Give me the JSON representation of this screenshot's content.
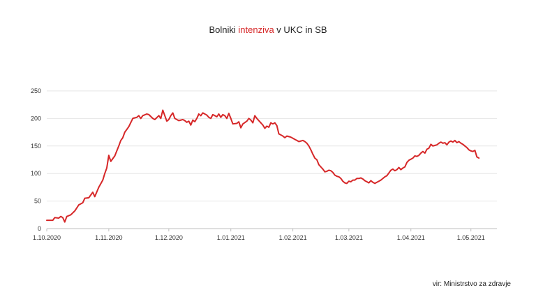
{
  "title": {
    "part1": "Bolniki ",
    "part2": "intenziva",
    "part3": " v UKC in SB"
  },
  "source": "vir: Ministrstvo za zdravje",
  "colors": {
    "line": "#d62728",
    "grid": "#e6e6e6",
    "axis": "#bfbfbf",
    "title_accent": "#d62728"
  },
  "chart_data": {
    "type": "line",
    "title": "Bolniki intenziva v UKC in SB",
    "xlabel": "",
    "ylabel": "",
    "x_unit": "day_index_from_2020-10-01",
    "xlim": [
      0,
      225
    ],
    "ylim": [
      0,
      250
    ],
    "grid": true,
    "legend": "none",
    "y_ticks": [
      0,
      50,
      100,
      150,
      200,
      250
    ],
    "x_ticks": [
      {
        "x": 0,
        "label": "1.10.2020"
      },
      {
        "x": 31,
        "label": "1.11.2020"
      },
      {
        "x": 61,
        "label": "1.12.2020"
      },
      {
        "x": 92,
        "label": "1.01.2021"
      },
      {
        "x": 123,
        "label": "1.02.2021"
      },
      {
        "x": 151,
        "label": "1.03.2021"
      },
      {
        "x": 182,
        "label": "1.04.2021"
      },
      {
        "x": 212,
        "label": "1.05.2021"
      }
    ],
    "series": [
      {
        "points": [
          [
            0,
            15
          ],
          [
            3,
            15
          ],
          [
            4,
            20
          ],
          [
            6,
            19
          ],
          [
            7,
            22
          ],
          [
            8,
            20
          ],
          [
            9,
            12
          ],
          [
            10,
            22
          ],
          [
            12,
            25
          ],
          [
            14,
            32
          ],
          [
            16,
            43
          ],
          [
            18,
            47
          ],
          [
            19,
            55
          ],
          [
            21,
            56
          ],
          [
            23,
            66
          ],
          [
            24,
            58
          ],
          [
            26,
            75
          ],
          [
            28,
            88
          ],
          [
            29,
            100
          ],
          [
            30,
            110
          ],
          [
            31,
            133
          ],
          [
            32,
            122
          ],
          [
            34,
            132
          ],
          [
            36,
            150
          ],
          [
            37,
            160
          ],
          [
            38,
            165
          ],
          [
            39,
            175
          ],
          [
            40,
            180
          ],
          [
            41,
            185
          ],
          [
            43,
            200
          ],
          [
            45,
            202
          ],
          [
            46,
            205
          ],
          [
            47,
            200
          ],
          [
            48,
            205
          ],
          [
            50,
            208
          ],
          [
            51,
            207
          ],
          [
            53,
            200
          ],
          [
            54,
            198
          ],
          [
            56,
            205
          ],
          [
            57,
            200
          ],
          [
            58,
            215
          ],
          [
            60,
            195
          ],
          [
            61,
            198
          ],
          [
            62,
            205
          ],
          [
            63,
            210
          ],
          [
            64,
            200
          ],
          [
            66,
            196
          ],
          [
            68,
            198
          ],
          [
            69,
            196
          ],
          [
            70,
            193
          ],
          [
            71,
            195
          ],
          [
            72,
            188
          ],
          [
            73,
            197
          ],
          [
            74,
            194
          ],
          [
            75,
            200
          ],
          [
            76,
            208
          ],
          [
            77,
            205
          ],
          [
            78,
            210
          ],
          [
            80,
            206
          ],
          [
            81,
            202
          ],
          [
            82,
            200
          ],
          [
            83,
            207
          ],
          [
            85,
            203
          ],
          [
            86,
            208
          ],
          [
            87,
            202
          ],
          [
            88,
            207
          ],
          [
            89,
            205
          ],
          [
            90,
            200
          ],
          [
            91,
            209
          ],
          [
            92,
            200
          ],
          [
            93,
            190
          ],
          [
            95,
            191
          ],
          [
            96,
            194
          ],
          [
            97,
            183
          ],
          [
            98,
            190
          ],
          [
            100,
            195
          ],
          [
            101,
            200
          ],
          [
            102,
            197
          ],
          [
            103,
            192
          ],
          [
            104,
            205
          ],
          [
            105,
            200
          ],
          [
            106,
            196
          ],
          [
            108,
            188
          ],
          [
            109,
            182
          ],
          [
            110,
            186
          ],
          [
            111,
            184
          ],
          [
            112,
            192
          ],
          [
            113,
            190
          ],
          [
            114,
            192
          ],
          [
            115,
            187
          ],
          [
            116,
            172
          ],
          [
            117,
            170
          ],
          [
            118,
            168
          ],
          [
            119,
            165
          ],
          [
            120,
            168
          ],
          [
            121,
            167
          ],
          [
            122,
            166
          ],
          [
            123,
            164
          ],
          [
            124,
            162
          ],
          [
            125,
            160
          ],
          [
            126,
            158
          ],
          [
            128,
            160
          ],
          [
            129,
            158
          ],
          [
            130,
            155
          ],
          [
            131,
            150
          ],
          [
            132,
            143
          ],
          [
            133,
            135
          ],
          [
            134,
            128
          ],
          [
            135,
            125
          ],
          [
            136,
            116
          ],
          [
            137,
            112
          ],
          [
            138,
            108
          ],
          [
            139,
            103
          ],
          [
            140,
            104
          ],
          [
            141,
            106
          ],
          [
            142,
            105
          ],
          [
            143,
            102
          ],
          [
            144,
            97
          ],
          [
            145,
            95
          ],
          [
            146,
            94
          ],
          [
            147,
            91
          ],
          [
            148,
            86
          ],
          [
            149,
            83
          ],
          [
            150,
            82
          ],
          [
            151,
            86
          ],
          [
            152,
            85
          ],
          [
            153,
            88
          ],
          [
            154,
            88
          ],
          [
            155,
            91
          ],
          [
            156,
            91
          ],
          [
            157,
            92
          ],
          [
            158,
            90
          ],
          [
            159,
            87
          ],
          [
            160,
            85
          ],
          [
            161,
            83
          ],
          [
            162,
            87
          ],
          [
            163,
            84
          ],
          [
            164,
            82
          ],
          [
            165,
            84
          ],
          [
            166,
            86
          ],
          [
            167,
            88
          ],
          [
            168,
            91
          ],
          [
            169,
            94
          ],
          [
            170,
            96
          ],
          [
            171,
            101
          ],
          [
            172,
            106
          ],
          [
            173,
            108
          ],
          [
            174,
            105
          ],
          [
            175,
            107
          ],
          [
            176,
            111
          ],
          [
            177,
            107
          ],
          [
            178,
            110
          ],
          [
            179,
            112
          ],
          [
            180,
            120
          ],
          [
            181,
            124
          ],
          [
            182,
            126
          ],
          [
            183,
            128
          ],
          [
            184,
            132
          ],
          [
            185,
            131
          ],
          [
            186,
            133
          ],
          [
            187,
            137
          ],
          [
            188,
            140
          ],
          [
            189,
            137
          ],
          [
            190,
            144
          ],
          [
            191,
            146
          ],
          [
            192,
            153
          ],
          [
            193,
            150
          ],
          [
            194,
            151
          ],
          [
            195,
            152
          ],
          [
            196,
            155
          ],
          [
            197,
            157
          ],
          [
            198,
            155
          ],
          [
            199,
            156
          ],
          [
            200,
            152
          ],
          [
            201,
            157
          ],
          [
            202,
            159
          ],
          [
            203,
            157
          ],
          [
            204,
            160
          ],
          [
            205,
            156
          ],
          [
            206,
            158
          ],
          [
            207,
            155
          ],
          [
            208,
            153
          ],
          [
            209,
            150
          ],
          [
            210,
            147
          ],
          [
            211,
            143
          ],
          [
            212,
            141
          ],
          [
            213,
            140
          ],
          [
            214,
            142
          ],
          [
            215,
            130
          ],
          [
            216,
            128
          ]
        ]
      }
    ]
  }
}
